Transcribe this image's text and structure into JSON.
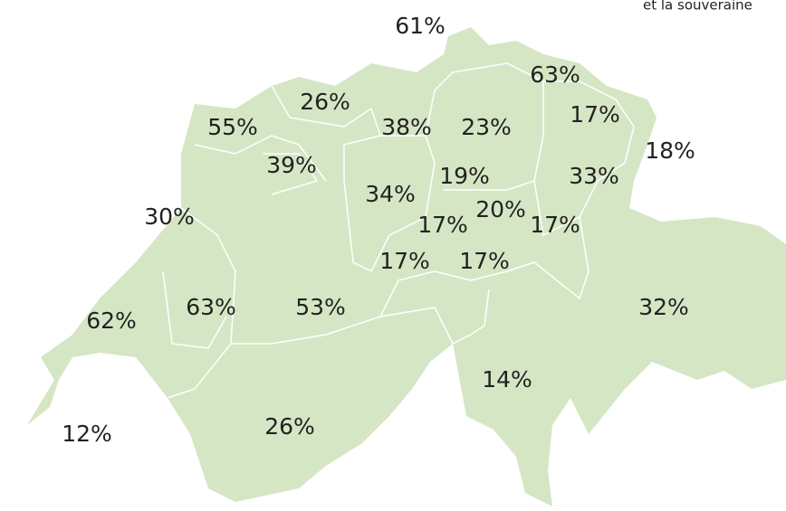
{
  "header": {
    "text": "et la souveraine"
  },
  "regions": [
    {
      "label": "61%"
    },
    {
      "label": "63%"
    },
    {
      "label": "26%"
    },
    {
      "label": "55%"
    },
    {
      "label": "38%"
    },
    {
      "label": "23%"
    },
    {
      "label": "17%"
    },
    {
      "label": "18%"
    },
    {
      "label": "39%"
    },
    {
      "label": "19%"
    },
    {
      "label": "33%"
    },
    {
      "label": "34%"
    },
    {
      "label": "20%"
    },
    {
      "label": "30%"
    },
    {
      "label": "17%"
    },
    {
      "label": "17%"
    },
    {
      "label": "17%"
    },
    {
      "label": "17%"
    },
    {
      "label": "62%"
    },
    {
      "label": "63%"
    },
    {
      "label": "53%"
    },
    {
      "label": "32%"
    },
    {
      "label": "14%"
    },
    {
      "label": "26%"
    },
    {
      "label": "12%"
    }
  ]
}
